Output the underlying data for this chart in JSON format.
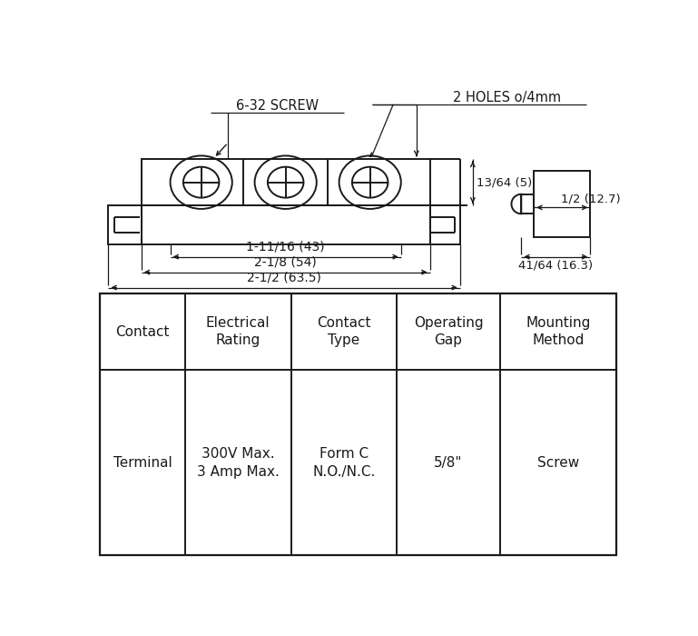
{
  "bg_color": "#ffffff",
  "line_color": "#1a1a1a",
  "table_headers": [
    "Contact",
    "Electrical\nRating",
    "Contact\nType",
    "Operating\nGap",
    "Mounting\nMethod"
  ],
  "table_row": [
    "Terminal",
    "300V Max.\n3 Amp Max.",
    "Form C\nN.O./N.C.",
    "5/8\"",
    "Screw"
  ],
  "annotation_6_32": "6-32 SCREW",
  "annotation_holes": "2 HOLES o/4mm",
  "dim_1": "13/64 (5)",
  "dim_2": "1-11/16 (43)",
  "dim_3": "2-1/8 (54)",
  "dim_4": "2-1/2 (63.5)",
  "dim_side_1": "1/2 (12.7)",
  "dim_side_2": "41/64 (16.3)"
}
